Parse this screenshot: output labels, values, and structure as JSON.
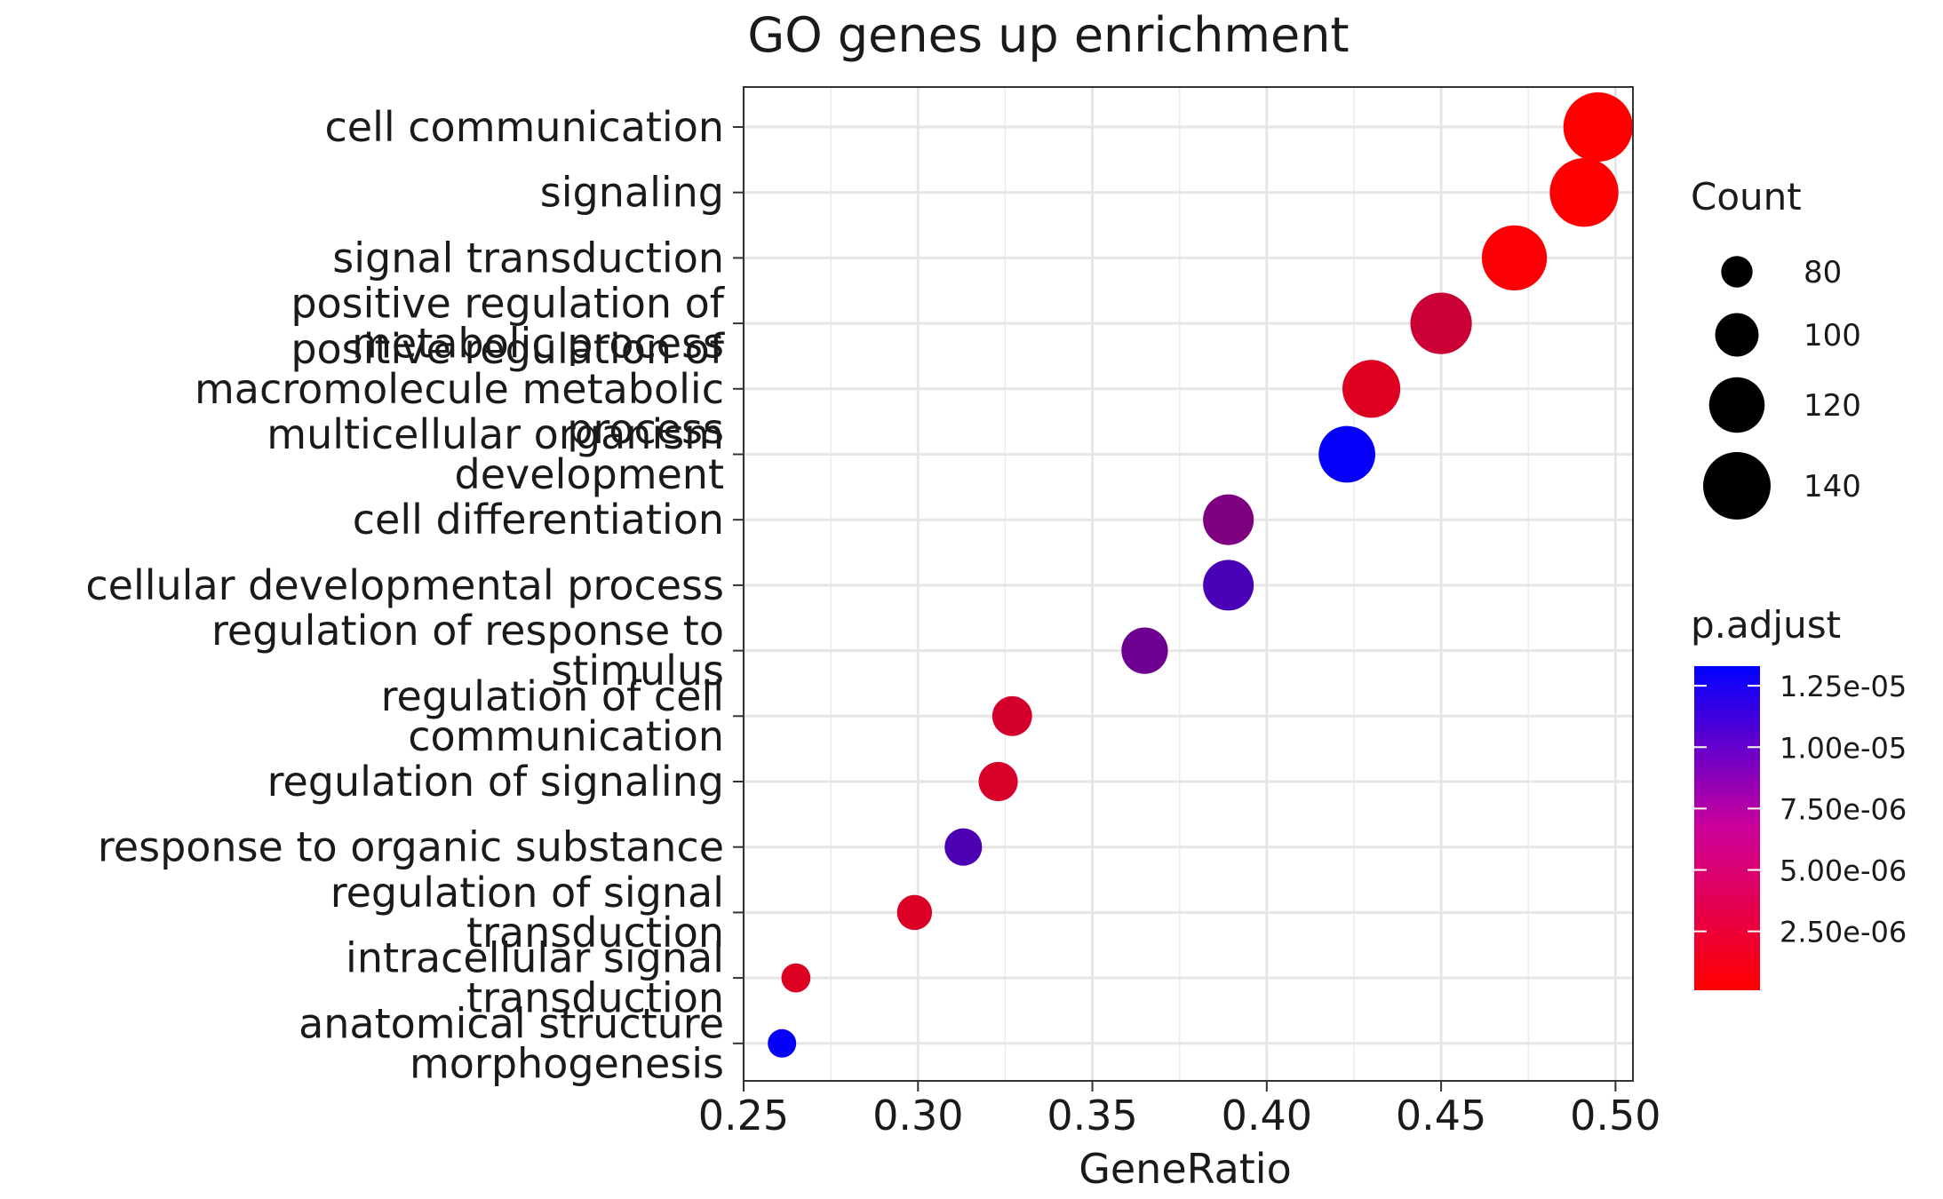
{
  "chart_data": {
    "type": "scatter",
    "title": "GO genes up enrichment",
    "xlabel": "GeneRatio",
    "ylabel": "",
    "xlim": [
      0.25,
      0.505
    ],
    "xticks": [
      "0.25",
      "0.30",
      "0.35",
      "0.40",
      "0.45",
      "0.50"
    ],
    "grid": true,
    "categories": [
      [
        "cell communication"
      ],
      [
        "signaling"
      ],
      [
        "signal transduction"
      ],
      [
        "positive regulation of",
        "metabolic process"
      ],
      [
        "positive regulation of",
        "macromolecule metabolic",
        "process"
      ],
      [
        "multicellular organism",
        "development"
      ],
      [
        "cell differentiation"
      ],
      [
        "cellular developmental process"
      ],
      [
        "regulation of response to",
        "stimulus"
      ],
      [
        "regulation of cell",
        "communication"
      ],
      [
        "regulation of signaling"
      ],
      [
        "response to organic substance"
      ],
      [
        "regulation of signal",
        "transduction"
      ],
      [
        "intracellular signal",
        "transduction"
      ],
      [
        "anatomical structure",
        "morphogenesis"
      ]
    ],
    "x": [
      0.495,
      0.491,
      0.471,
      0.45,
      0.43,
      0.423,
      0.389,
      0.389,
      0.365,
      0.327,
      0.323,
      0.313,
      0.299,
      0.265,
      0.261
    ],
    "count": [
      143,
      142,
      136,
      130,
      124,
      122,
      112,
      112,
      105,
      94,
      93,
      90,
      86,
      76,
      75
    ],
    "p_adjust": [
      1e-07,
      1.5e-07,
      3e-07,
      2.8e-06,
      1.8e-06,
      1.3e-05,
      6.8e-06,
      9.5e-06,
      7.6e-06,
      2.3e-06,
      2.2e-06,
      9.3e-06,
      2e-06,
      1.9e-06,
      1.3e-05
    ],
    "legend_size": {
      "title": "Count",
      "values": [
        80,
        100,
        120,
        140
      ],
      "labels": [
        "80",
        "100",
        "120",
        "140"
      ]
    },
    "legend_color": {
      "title": "p.adjust",
      "range": [
        1e-07,
        1.33e-05
      ],
      "ticks": [
        1.25e-05,
        1e-05,
        7.5e-06,
        5e-06,
        2.5e-06
      ],
      "labels": [
        "1.25e-05",
        "1.00e-05",
        "7.50e-06",
        "5.00e-06",
        "2.50e-06"
      ],
      "low_color": "#ff0000",
      "high_color": "#0000ff"
    },
    "legend_placement": "right"
  }
}
